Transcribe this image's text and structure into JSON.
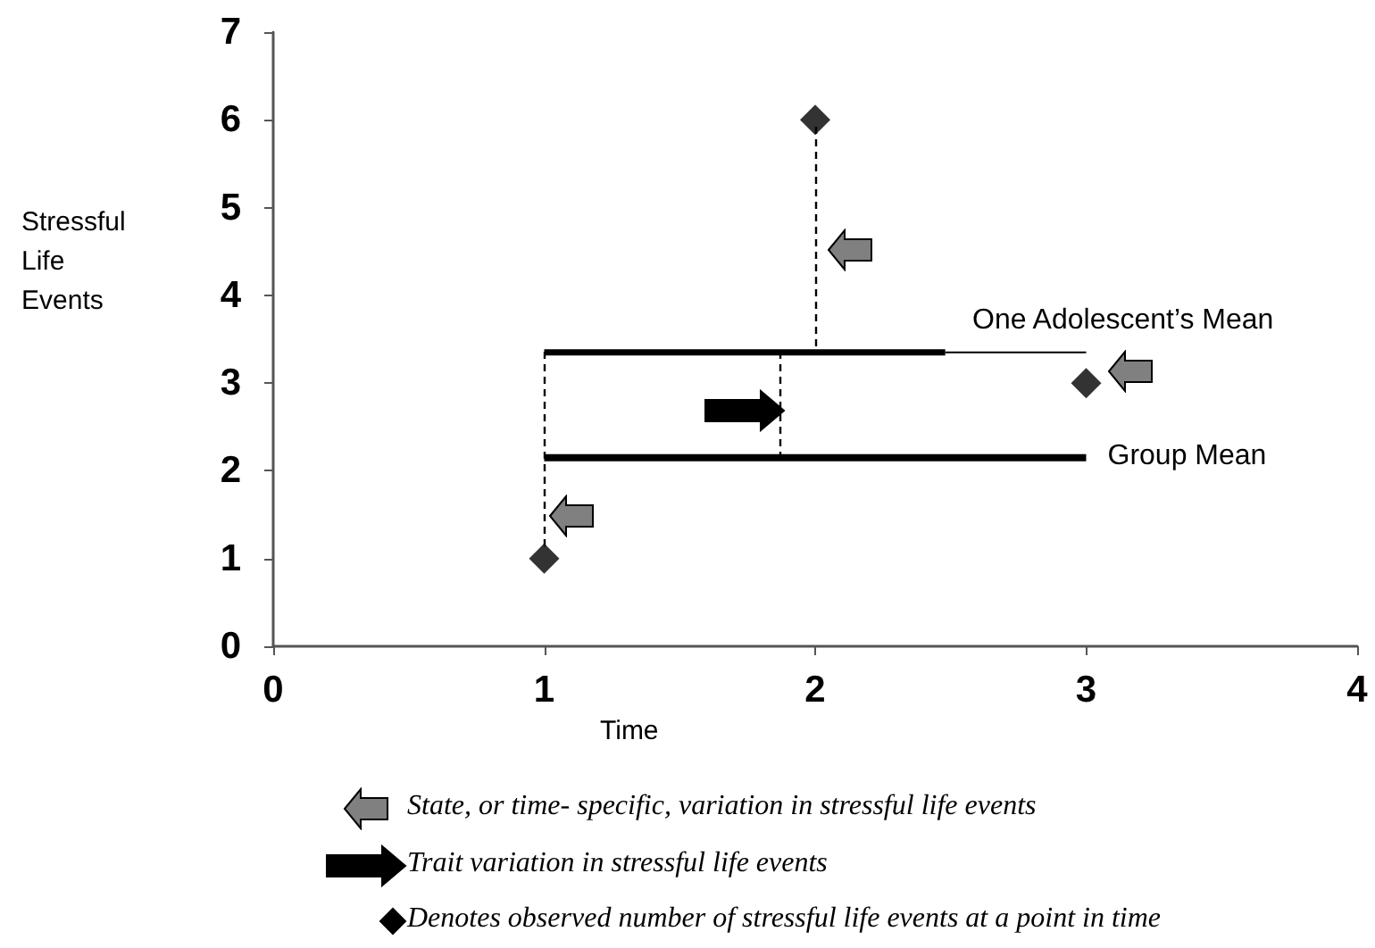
{
  "chart_data": {
    "type": "scatter",
    "xlabel": "Time",
    "ylabel": "Stressful Life Events",
    "xlim": [
      0,
      4
    ],
    "xticks": [
      0,
      1,
      2,
      3,
      4
    ],
    "ylim": [
      0,
      7
    ],
    "yticks": [
      0,
      1,
      2,
      3,
      4,
      5,
      6,
      7
    ],
    "grid": false,
    "series": [
      {
        "marker": "diamond",
        "color": "#000000",
        "x": [
          1,
          2,
          3
        ],
        "values": [
          1,
          6,
          3
        ]
      },
      {
        "type": "line",
        "marker": "none",
        "line_style": "solid",
        "color": "#000000",
        "x": [
          1,
          2.48
        ],
        "values": [
          3.35,
          3.35
        ]
      },
      {
        "type": "line",
        "marker": "none",
        "line_style": "solid",
        "color": "#000000",
        "x": [
          2.48,
          3
        ],
        "values": [
          3.35,
          3.35
        ]
      },
      {
        "type": "line",
        "marker": "none",
        "line_style": "solid",
        "color": "#000000",
        "x": [
          1,
          3
        ],
        "values": [
          2.15,
          2.15
        ]
      }
    ],
    "annotations": [
      {
        "text": "One Adolescent’s Mean",
        "x": 2.58,
        "y": 3.35
      },
      {
        "text": "Group Mean",
        "x": 3,
        "y": 2.15
      },
      "State, or time- specific, variation in stressful life events",
      "Trait variation in stressful life events",
      "Denotes observed number of stressful life events at a point in time"
    ]
  }
}
